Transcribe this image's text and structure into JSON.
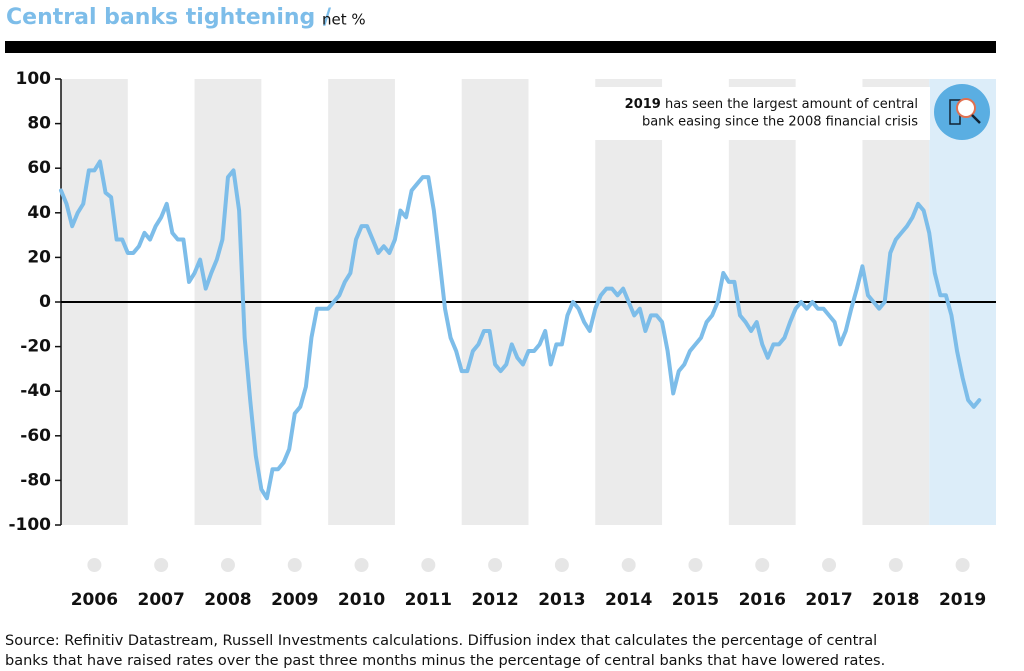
{
  "chart_data": {
    "type": "line",
    "title": "Central banks tightening /",
    "subtitle": "net %",
    "annotation": {
      "bold": "2019",
      "lines": [
        " has seen the largest amount of central",
        "bank easing since the 2008 financial crisis"
      ]
    },
    "source": [
      "Source: Refinitiv Datastream, Russell Investments calculations. Diffusion index that calculates the percentage of central",
      "banks that have raised rates over the past three months minus the percentage of central banks that have lowered rates."
    ],
    "xlim": [
      2006,
      2020
    ],
    "xticks": [
      {
        "value": 2006.5,
        "label": "2006"
      },
      {
        "value": 2007.5,
        "label": "2007"
      },
      {
        "value": 2008.5,
        "label": "2008"
      },
      {
        "value": 2009.5,
        "label": "2009"
      },
      {
        "value": 2010.5,
        "label": "2010"
      },
      {
        "value": 2011.5,
        "label": "2011"
      },
      {
        "value": 2012.5,
        "label": "2012"
      },
      {
        "value": 2013.5,
        "label": "2013"
      },
      {
        "value": 2014.5,
        "label": "2014"
      },
      {
        "value": 2015.5,
        "label": "2015"
      },
      {
        "value": 2016.5,
        "label": "2016"
      },
      {
        "value": 2017.5,
        "label": "2017"
      },
      {
        "value": 2018.5,
        "label": "2018"
      },
      {
        "value": 2019.5,
        "label": "2019"
      }
    ],
    "ylim": [
      -100,
      100
    ],
    "yticks": [
      -100,
      -80,
      -60,
      -40,
      -20,
      0,
      20,
      40,
      60,
      80,
      100
    ],
    "shaded_span": [
      2019,
      2020
    ],
    "series": [
      {
        "color": "#7dbde9",
        "x": [
          2006,
          2006.083,
          2006.167,
          2006.25,
          2006.333,
          2006.417,
          2006.5,
          2006.583,
          2006.667,
          2006.75,
          2006.833,
          2006.917,
          2007,
          2007.083,
          2007.167,
          2007.25,
          2007.333,
          2007.417,
          2007.5,
          2007.583,
          2007.667,
          2007.75,
          2007.833,
          2007.917,
          2008,
          2008.083,
          2008.167,
          2008.25,
          2008.333,
          2008.417,
          2008.5,
          2008.583,
          2008.667,
          2008.75,
          2008.833,
          2008.917,
          2009,
          2009.083,
          2009.167,
          2009.25,
          2009.333,
          2009.417,
          2009.5,
          2009.583,
          2009.667,
          2009.75,
          2009.833,
          2009.917,
          2010,
          2010.083,
          2010.167,
          2010.25,
          2010.333,
          2010.417,
          2010.5,
          2010.583,
          2010.667,
          2010.75,
          2010.833,
          2010.917,
          2011,
          2011.083,
          2011.167,
          2011.25,
          2011.333,
          2011.417,
          2011.5,
          2011.583,
          2011.667,
          2011.75,
          2011.833,
          2011.917,
          2012,
          2012.083,
          2012.167,
          2012.25,
          2012.333,
          2012.417,
          2012.5,
          2012.583,
          2012.667,
          2012.75,
          2012.833,
          2012.917,
          2013,
          2013.083,
          2013.167,
          2013.25,
          2013.333,
          2013.417,
          2013.5,
          2013.583,
          2013.667,
          2013.75,
          2013.833,
          2013.917,
          2014,
          2014.083,
          2014.167,
          2014.25,
          2014.333,
          2014.417,
          2014.5,
          2014.583,
          2014.667,
          2014.75,
          2014.833,
          2014.917,
          2015,
          2015.083,
          2015.167,
          2015.25,
          2015.333,
          2015.417,
          2015.5,
          2015.583,
          2015.667,
          2015.75,
          2015.833,
          2015.917,
          2016,
          2016.083,
          2016.167,
          2016.25,
          2016.333,
          2016.417,
          2016.5,
          2016.583,
          2016.667,
          2016.75,
          2016.833,
          2016.917,
          2017,
          2017.083,
          2017.167,
          2017.25,
          2017.333,
          2017.417,
          2017.5,
          2017.583,
          2017.667,
          2017.75,
          2017.833,
          2017.917,
          2018,
          2018.083,
          2018.167,
          2018.25,
          2018.333,
          2018.417,
          2018.5,
          2018.583,
          2018.667,
          2018.75,
          2018.833,
          2018.917,
          2019,
          2019.083,
          2019.167,
          2019.25,
          2019.333,
          2019.417,
          2019.5,
          2019.583,
          2019.667,
          2019.75
        ],
        "values": [
          50,
          44,
          34,
          40,
          44,
          59,
          59,
          63,
          49,
          47,
          28,
          28,
          22,
          22,
          25,
          31,
          28,
          34,
          38,
          44,
          31,
          28,
          28,
          9,
          13,
          19,
          6,
          13,
          19,
          28,
          56,
          59,
          41,
          -16,
          -44,
          -69,
          -84,
          -88,
          -75,
          -75,
          -72,
          -66,
          -50,
          -47,
          -38,
          -16,
          -3,
          -3,
          -3,
          0,
          3,
          9,
          13,
          28,
          34,
          34,
          28,
          22,
          25,
          22,
          28,
          41,
          38,
          50,
          53,
          56,
          56,
          41,
          19,
          -3,
          -16,
          -22,
          -31,
          -31,
          -22,
          -19,
          -13,
          -13,
          -28,
          -31,
          -28,
          -19,
          -25,
          -28,
          -22,
          -22,
          -19,
          -13,
          -28,
          -19,
          -19,
          -6,
          0,
          -3,
          -9,
          -13,
          -3,
          3,
          6,
          6,
          3,
          6,
          0,
          -6,
          -3,
          -13,
          -6,
          -6,
          -9,
          -22,
          -41,
          -31,
          -28,
          -22,
          -19,
          -16,
          -9,
          -6,
          0,
          13,
          9,
          9,
          -6,
          -9,
          -13,
          -9,
          -19,
          -25,
          -19,
          -19,
          -16,
          -9,
          -3,
          0,
          -3,
          0,
          -3,
          -3,
          -6,
          -9,
          -19,
          -13,
          -3,
          6,
          16,
          3,
          0,
          -3,
          0,
          22,
          28,
          31,
          34,
          38,
          44,
          41,
          31,
          13,
          3,
          3,
          -6,
          -22,
          -34,
          -44,
          -47,
          -44
        ]
      }
    ]
  }
}
